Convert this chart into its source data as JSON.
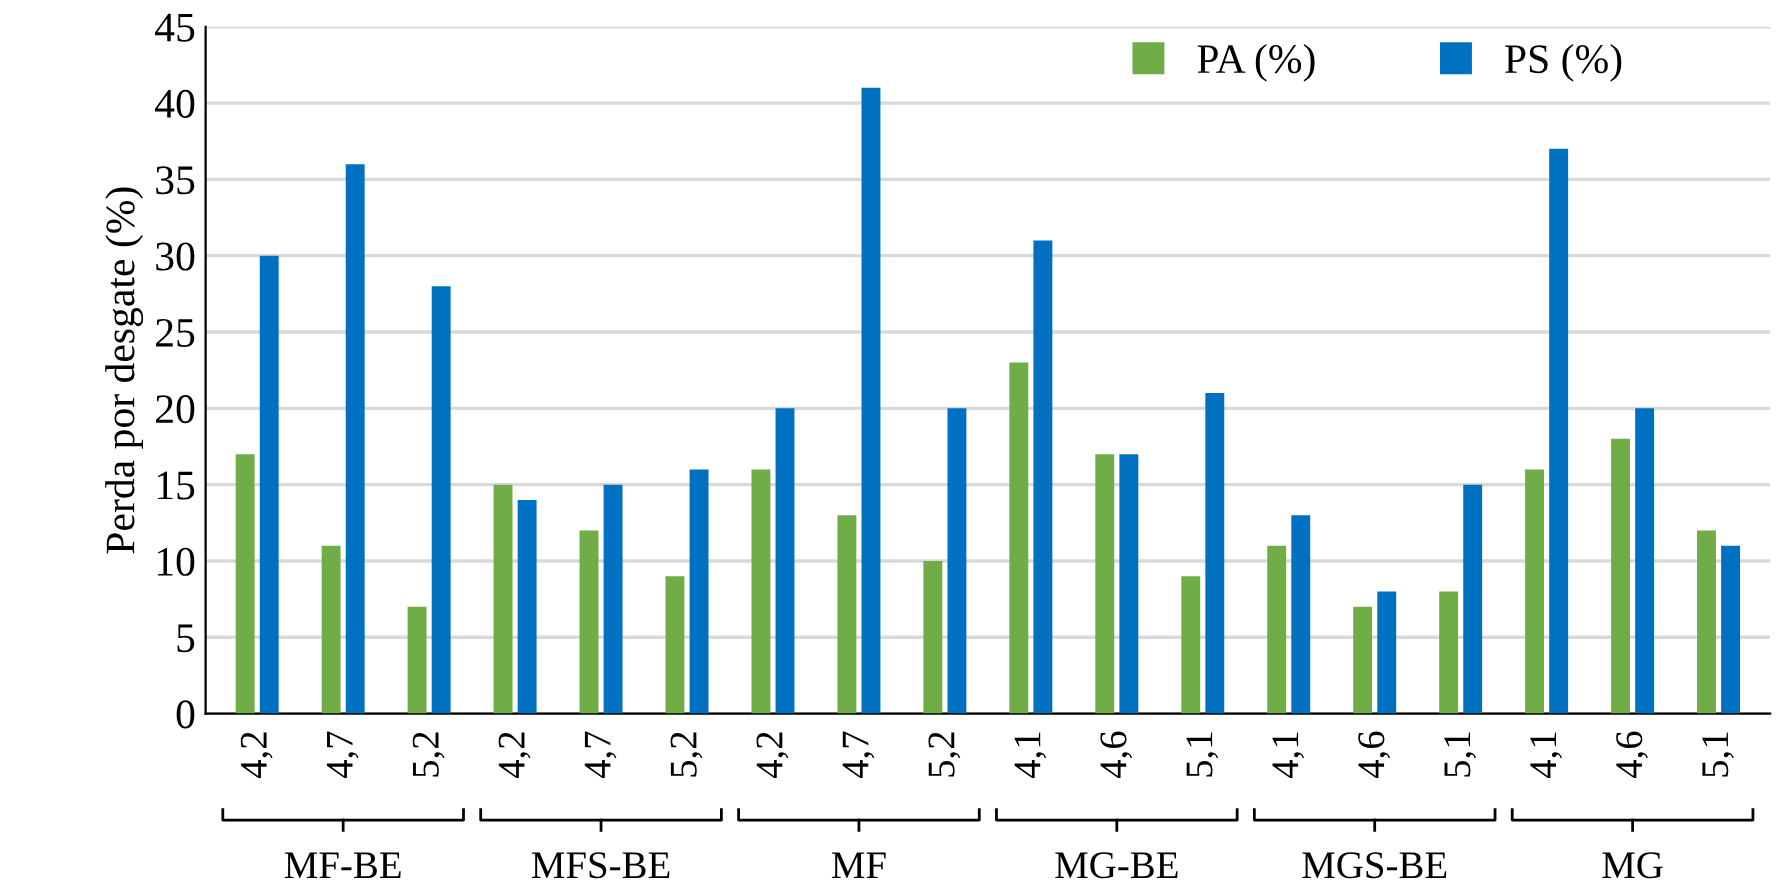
{
  "chart_data": {
    "type": "bar",
    "ylabel": "Perda por desgate (%)",
    "categories": [
      "4,2",
      "4,7",
      "5,2",
      "4,2",
      "4,7",
      "5,2",
      "4,2",
      "4,7",
      "5,2",
      "4,1",
      "4,6",
      "5,1",
      "4,1",
      "4,6",
      "5,1",
      "4,1",
      "4,6",
      "5,1"
    ],
    "series": [
      {
        "name": "PA (%)",
        "color": "#70ad47",
        "values": [
          17,
          11,
          7,
          15,
          12,
          9,
          16,
          13,
          10,
          23,
          17,
          9,
          11,
          7,
          8,
          16,
          18,
          12
        ]
      },
      {
        "name": "PS (%)",
        "color": "#0070c0",
        "values": [
          30,
          36,
          28,
          14,
          15,
          16,
          20,
          41,
          20,
          31,
          17,
          21,
          13,
          8,
          15,
          37,
          20,
          11
        ]
      }
    ],
    "annotations": [
      "MF-BE",
      "MFS-BE",
      "MF",
      "MG-BE",
      "MGS-BE",
      "MG"
    ],
    "ylim": [
      0,
      45
    ],
    "yticks": [
      0,
      5,
      10,
      15,
      20,
      25,
      30,
      35,
      40,
      45
    ],
    "grid": "y",
    "legend": "top right"
  }
}
